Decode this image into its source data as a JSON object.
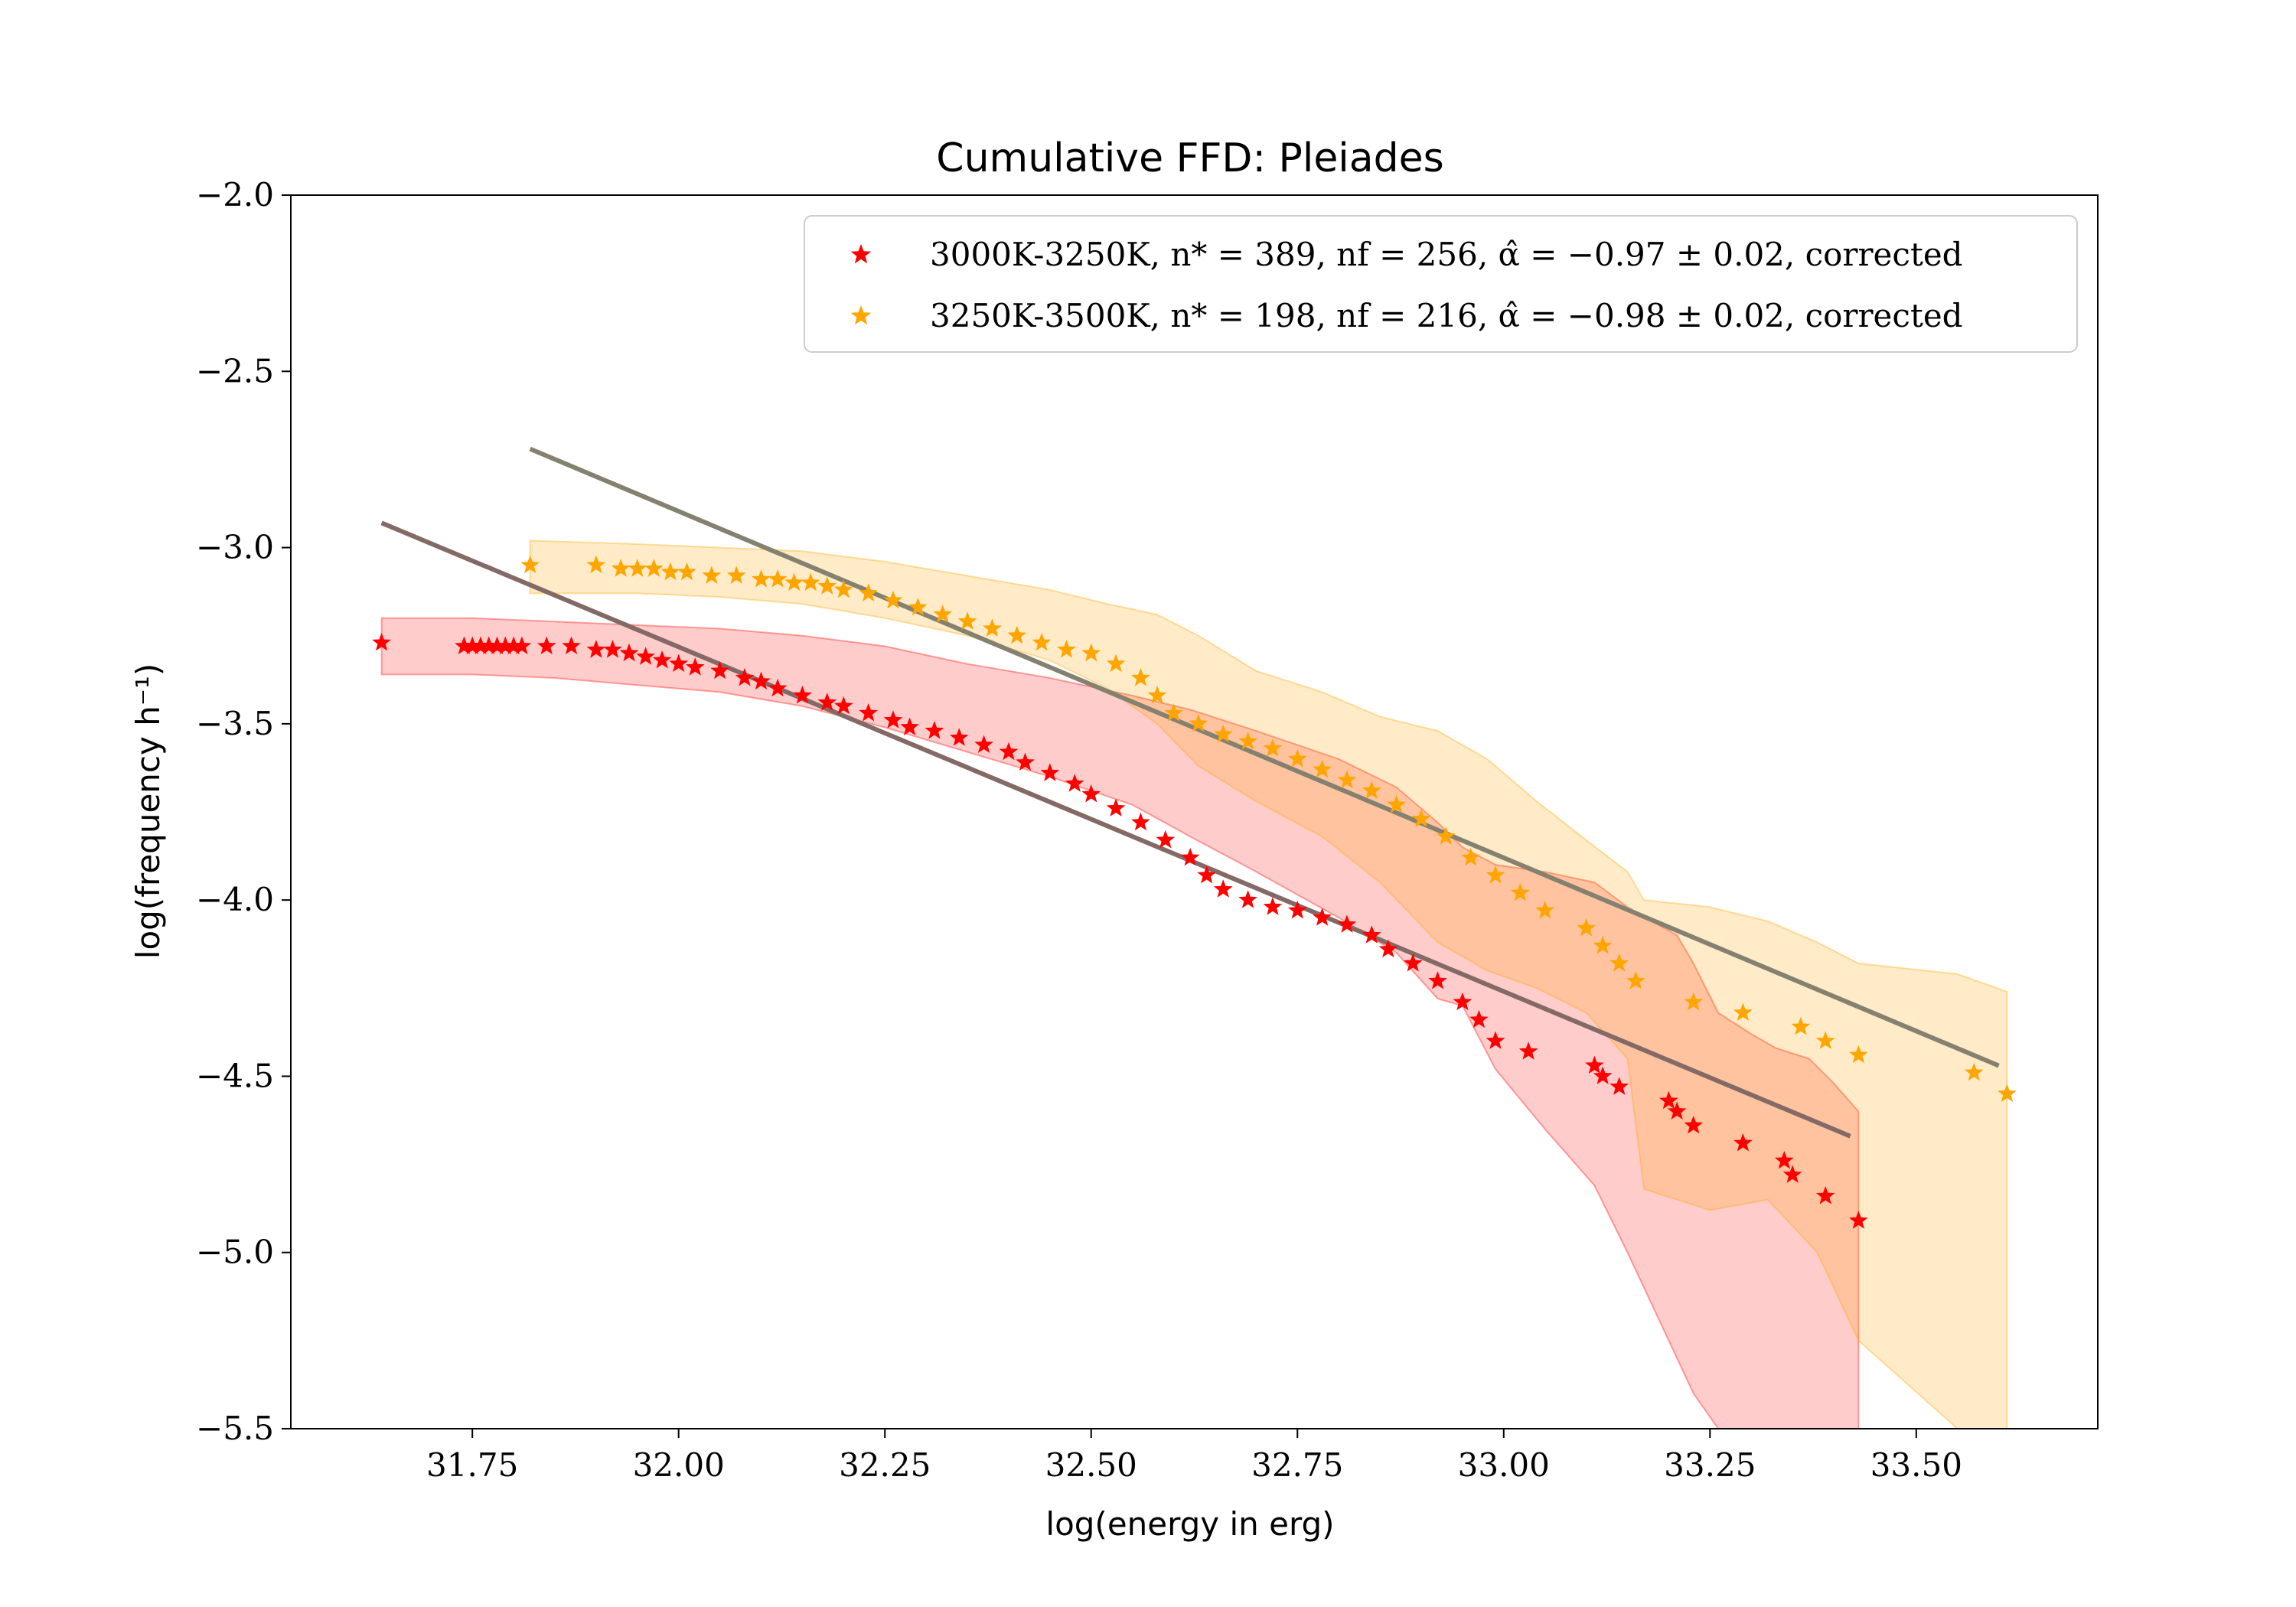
{
  "chart_data": {
    "type": "scatter",
    "title": "Cumulative FFD: Pleiades",
    "xlabel": "log(energy in erg)",
    "ylabel": "log(frequency h⁻¹)",
    "xlim": [
      31.53,
      33.72
    ],
    "ylim": [
      -5.5,
      -2.0
    ],
    "xticks": [
      "31.75",
      "32.00",
      "32.25",
      "32.50",
      "32.75",
      "33.00",
      "33.25",
      "33.50"
    ],
    "yticks": [
      "−2.0",
      "−2.5",
      "−3.0",
      "−3.5",
      "−4.0",
      "−4.5",
      "−5.0",
      "−5.5"
    ],
    "legend_position": "top-right",
    "grid": false,
    "series": [
      {
        "name": "3000K-3250K, n* = 389, nf = 256, α̂ = −0.97 ± 0.02, corrected",
        "color": "#ff0000",
        "marker": "star",
        "x": [
          31.64,
          31.74,
          31.75,
          31.76,
          31.77,
          31.78,
          31.79,
          31.8,
          31.81,
          31.84,
          31.87,
          31.9,
          31.92,
          31.94,
          31.96,
          31.98,
          32.0,
          32.02,
          32.05,
          32.08,
          32.1,
          32.12,
          32.15,
          32.18,
          32.2,
          32.23,
          32.26,
          32.28,
          32.31,
          32.34,
          32.37,
          32.4,
          32.42,
          32.45,
          32.48,
          32.5,
          32.53,
          32.56,
          32.59,
          32.62,
          32.64,
          32.66,
          32.69,
          32.72,
          32.75,
          32.78,
          32.81,
          32.84,
          32.86,
          32.89,
          32.92,
          32.95,
          32.97,
          32.99,
          33.03,
          33.11,
          33.12,
          33.14,
          33.2,
          33.21,
          33.23,
          33.29,
          33.34,
          33.35,
          33.39,
          33.43
        ],
        "y": [
          -3.27,
          -3.28,
          -3.28,
          -3.28,
          -3.28,
          -3.28,
          -3.28,
          -3.28,
          -3.28,
          -3.28,
          -3.28,
          -3.29,
          -3.29,
          -3.3,
          -3.31,
          -3.32,
          -3.33,
          -3.34,
          -3.35,
          -3.37,
          -3.38,
          -3.4,
          -3.42,
          -3.44,
          -3.45,
          -3.47,
          -3.49,
          -3.51,
          -3.52,
          -3.54,
          -3.56,
          -3.58,
          -3.61,
          -3.64,
          -3.67,
          -3.7,
          -3.74,
          -3.78,
          -3.83,
          -3.88,
          -3.93,
          -3.97,
          -4.0,
          -4.02,
          -4.03,
          -4.05,
          -4.07,
          -4.1,
          -4.14,
          -4.18,
          -4.23,
          -4.29,
          -4.34,
          -4.4,
          -4.43,
          -4.47,
          -4.5,
          -4.53,
          -4.57,
          -4.6,
          -4.64,
          -4.69,
          -4.74,
          -4.78,
          -4.84,
          -4.91
        ],
        "band_upper": [
          -3.2,
          -3.2,
          -3.21,
          -3.22,
          -3.23,
          -3.25,
          -3.28,
          -3.33,
          -3.37,
          -3.42,
          -3.46,
          -3.52,
          -3.6,
          -3.68,
          -3.78,
          -3.85,
          -3.9,
          -3.92,
          -3.95,
          -4.02,
          -4.1,
          -4.18,
          -4.32,
          -4.38,
          -4.42,
          -4.45,
          -4.52,
          -4.6
        ],
        "band_lower": [
          -3.36,
          -3.36,
          -3.37,
          -3.39,
          -3.41,
          -3.45,
          -3.51,
          -3.58,
          -3.65,
          -3.73,
          -3.82,
          -3.92,
          -4.05,
          -4.15,
          -4.28,
          -4.3,
          -4.48,
          -4.65,
          -4.81,
          -5.0,
          -5.3,
          -5.4,
          -5.5,
          -5.5,
          -5.5,
          -5.5,
          -5.5,
          -5.5
        ],
        "band_x": [
          31.64,
          31.75,
          31.85,
          31.95,
          32.05,
          32.15,
          32.25,
          32.35,
          32.45,
          32.55,
          32.62,
          32.7,
          32.8,
          32.87,
          32.92,
          32.95,
          32.99,
          33.05,
          33.11,
          33.15,
          33.21,
          33.23,
          33.26,
          33.3,
          33.33,
          33.37,
          33.4,
          33.43
        ],
        "fit": {
          "x": [
            31.64,
            33.42
          ],
          "y": [
            -2.93,
            -4.67
          ],
          "color": "#836a66"
        }
      },
      {
        "name": "3250K-3500K, n* = 198, nf = 216, α̂ = −0.98 ± 0.02, corrected",
        "color": "#ffa500",
        "marker": "star",
        "x": [
          31.82,
          31.9,
          31.93,
          31.95,
          31.97,
          31.99,
          32.01,
          32.04,
          32.07,
          32.1,
          32.12,
          32.14,
          32.16,
          32.18,
          32.2,
          32.23,
          32.26,
          32.29,
          32.32,
          32.35,
          32.38,
          32.41,
          32.44,
          32.47,
          32.5,
          32.53,
          32.56,
          32.58,
          32.6,
          32.63,
          32.66,
          32.69,
          32.72,
          32.75,
          32.78,
          32.81,
          32.84,
          32.87,
          32.9,
          32.93,
          32.96,
          32.99,
          33.02,
          33.05,
          33.1,
          33.12,
          33.14,
          33.16,
          33.23,
          33.29,
          33.36,
          33.39,
          33.43,
          33.57,
          33.61
        ],
        "y": [
          -3.05,
          -3.05,
          -3.06,
          -3.06,
          -3.06,
          -3.07,
          -3.07,
          -3.08,
          -3.08,
          -3.09,
          -3.09,
          -3.1,
          -3.1,
          -3.11,
          -3.12,
          -3.13,
          -3.15,
          -3.17,
          -3.19,
          -3.21,
          -3.23,
          -3.25,
          -3.27,
          -3.29,
          -3.3,
          -3.33,
          -3.37,
          -3.42,
          -3.47,
          -3.5,
          -3.53,
          -3.55,
          -3.57,
          -3.6,
          -3.63,
          -3.66,
          -3.69,
          -3.73,
          -3.77,
          -3.82,
          -3.88,
          -3.93,
          -3.98,
          -4.03,
          -4.08,
          -4.13,
          -4.18,
          -4.23,
          -4.29,
          -4.32,
          -4.36,
          -4.4,
          -4.44,
          -4.49,
          -4.55
        ],
        "band_upper": [
          -2.98,
          -2.99,
          -3.0,
          -3.01,
          -3.04,
          -3.08,
          -3.12,
          -3.16,
          -3.19,
          -3.25,
          -3.35,
          -3.41,
          -3.48,
          -3.52,
          -3.6,
          -3.72,
          -3.83,
          -3.92,
          -4.0,
          -4.02,
          -4.06,
          -4.12,
          -4.18,
          -4.21,
          -4.26
        ],
        "band_lower": [
          -3.13,
          -3.13,
          -3.14,
          -3.16,
          -3.2,
          -3.25,
          -3.32,
          -3.4,
          -3.5,
          -3.62,
          -3.72,
          -3.82,
          -3.95,
          -4.12,
          -4.2,
          -4.25,
          -4.32,
          -4.45,
          -4.82,
          -4.88,
          -4.85,
          -5.0,
          -5.25,
          -5.5,
          -5.5
        ],
        "band_x": [
          31.82,
          31.95,
          32.05,
          32.15,
          32.25,
          32.35,
          32.45,
          32.52,
          32.58,
          32.63,
          32.7,
          32.78,
          32.85,
          32.92,
          32.98,
          33.04,
          33.1,
          33.15,
          33.17,
          33.25,
          33.32,
          33.38,
          33.43,
          33.55,
          33.61
        ],
        "fit": {
          "x": [
            31.82,
            33.6
          ],
          "y": [
            -2.72,
            -4.47
          ],
          "color": "#848170"
        }
      }
    ]
  }
}
